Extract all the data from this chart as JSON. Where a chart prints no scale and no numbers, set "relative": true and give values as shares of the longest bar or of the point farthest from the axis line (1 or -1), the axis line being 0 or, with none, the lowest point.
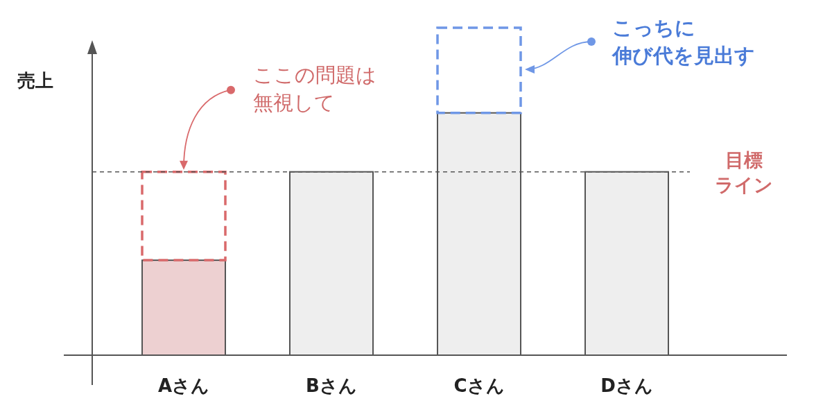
{
  "chart_data": {
    "type": "bar",
    "relative": true,
    "stacked": true,
    "ylabel": "売上",
    "categories": [
      "Aさん",
      "Bさん",
      "Cさん",
      "Dさん"
    ],
    "series": [
      {
        "values": [
          0.29,
          0.56,
          0.74,
          0.56
        ],
        "colors": [
          "#edd0d1",
          "#eeeeee",
          "#eeeeee",
          "#eeeeee"
        ]
      },
      {
        "values": [
          0.27,
          null,
          0.26,
          null
        ],
        "colors": [
          "#d9696b",
          null,
          "#6f97e6",
          null
        ],
        "line_style": "dashed"
      }
    ],
    "ref_lines": [
      {
        "axis": "y",
        "value": 0.56,
        "label": "目標ライン",
        "color": "#555555",
        "line_style": "dashed"
      }
    ],
    "annotations": [
      {
        "text": "ここの問題は無視して",
        "x": "Aさん",
        "y": 0.56
      },
      "こっちに伸び代を見出す"
    ]
  }
}
